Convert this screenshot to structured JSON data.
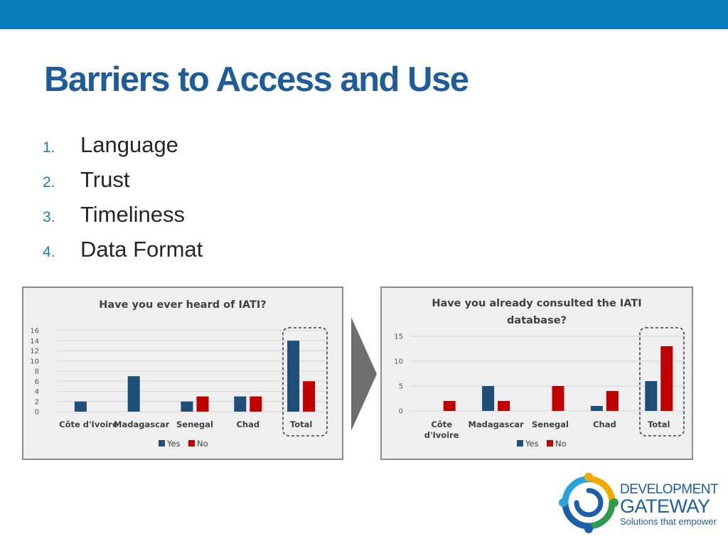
{
  "slide": {
    "title": "Barriers to Access and Use",
    "items": [
      {
        "num": "1.",
        "text": "Language"
      },
      {
        "num": "2.",
        "text": "Trust"
      },
      {
        "num": "3.",
        "text": "Timeliness"
      },
      {
        "num": "4.",
        "text": "Data Format"
      }
    ]
  },
  "colors": {
    "topbar": "#0a7dbd",
    "title": "#1f5c9a",
    "numbers": "#1a7fc0",
    "yes": "#1f4e79",
    "no": "#c00000",
    "arrow": "#6e6e6e"
  },
  "icons": {
    "arrow": "chevron-right-arrow-icon",
    "logo": "development-gateway-logo-icon"
  },
  "logo": {
    "line1": "DEVELOPMENT",
    "line2": "GATEWAY",
    "tagline": "Solutions that empower"
  },
  "chart_data": [
    {
      "type": "bar",
      "title_lines": [
        "Have you ever heard of IATI?"
      ],
      "categories": [
        "Côte d'Ivoire",
        "Madagascar",
        "Senegal",
        "Chad",
        "Total"
      ],
      "category_lines": [
        [
          "Côte d'Ivoire"
        ],
        [
          "Madagascar"
        ],
        [
          "Senegal"
        ],
        [
          "Chad"
        ],
        [
          "Total"
        ]
      ],
      "series": [
        {
          "name": "Yes",
          "values": [
            2,
            7,
            2,
            3,
            14
          ]
        },
        {
          "name": "No",
          "values": [
            0,
            0,
            3,
            3,
            6
          ]
        }
      ],
      "ylim": [
        0,
        16
      ],
      "yticks": [
        0,
        2,
        4,
        6,
        8,
        10,
        12,
        14,
        16
      ],
      "grid": true,
      "legend": "bottom",
      "highlight": "Total"
    },
    {
      "type": "bar",
      "title_lines": [
        "Have you already consulted the IATI",
        "database?"
      ],
      "categories": [
        "Côte d'Ivoire",
        "Madagascar",
        "Senegal",
        "Chad",
        "Total"
      ],
      "category_lines": [
        [
          "Côte",
          "d'Ivoire"
        ],
        [
          "Madagascar"
        ],
        [
          "Senegal"
        ],
        [
          "Chad"
        ],
        [
          "Total"
        ]
      ],
      "series": [
        {
          "name": "Yes",
          "values": [
            0,
            5,
            0,
            1,
            6
          ]
        },
        {
          "name": "No",
          "values": [
            2,
            2,
            5,
            4,
            13
          ]
        }
      ],
      "ylim": [
        0,
        15
      ],
      "yticks": [
        0,
        5,
        10,
        15
      ],
      "grid": true,
      "legend": "bottom",
      "highlight": "Total"
    }
  ]
}
